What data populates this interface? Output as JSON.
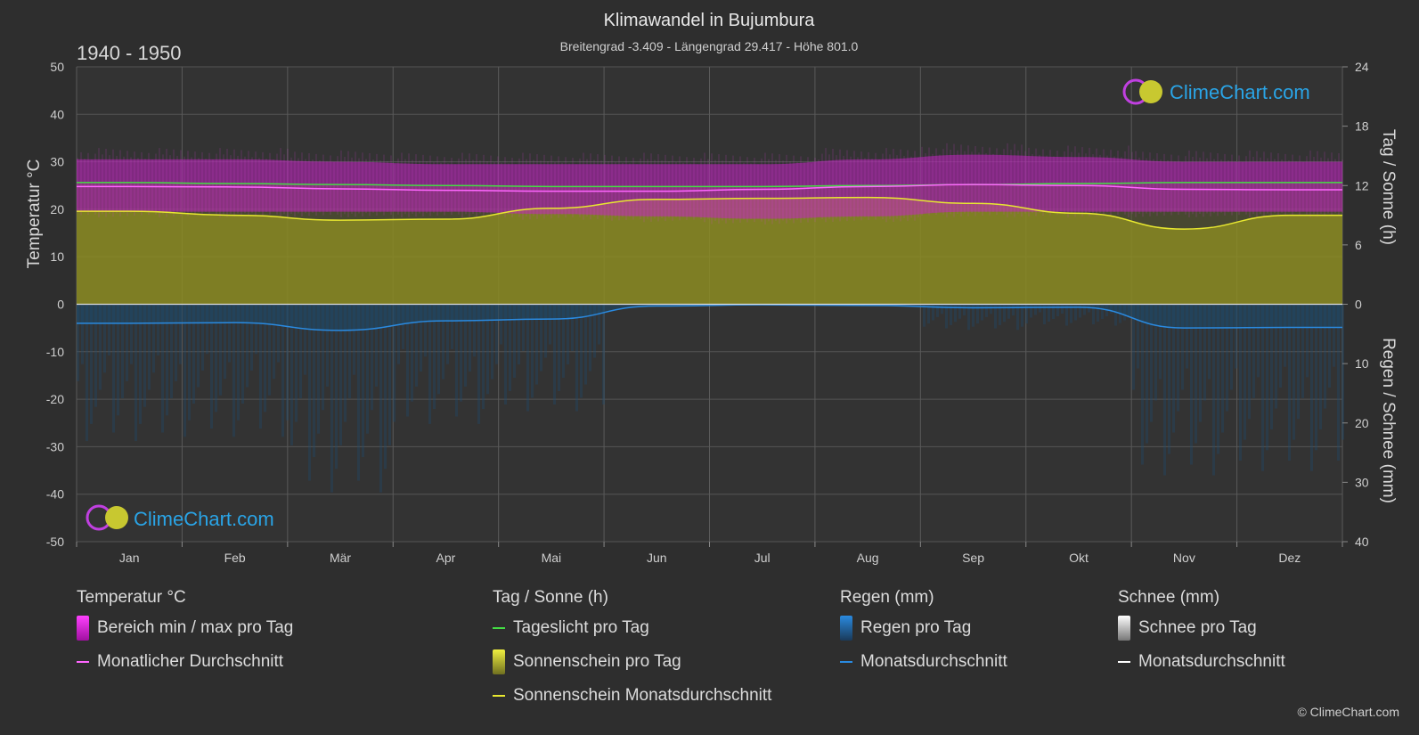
{
  "header": {
    "title": "Klimawandel in Bujumbura",
    "subtitle": "Breitengrad -3.409 - Längengrad 29.417 - Höhe 801.0",
    "range": "1940 - 1950"
  },
  "logo": {
    "text": "ClimeChart.com"
  },
  "copyright": "© ClimeChart.com",
  "colors": {
    "background": "#2e2e2e",
    "temp_range": "#d020d0",
    "temp_avg": "#ff66ff",
    "daylight": "#44dd44",
    "sunshine_fill": "#9a9a20",
    "sunshine_avg": "#e8e830",
    "rain_fill": "#1e5a8a",
    "rain_avg": "#2a8ae0",
    "snow_avg": "#ffffff"
  },
  "legend": {
    "temp": {
      "heading": "Temperatur °C",
      "items": [
        {
          "label": "Bereich min / max pro Tag",
          "swatch": "box",
          "color": "#e020e0"
        },
        {
          "label": "Monatlicher Durchschnitt",
          "swatch": "line",
          "color": "#ff66ff"
        }
      ]
    },
    "sun": {
      "heading": "Tag / Sonne (h)",
      "items": [
        {
          "label": "Tageslicht pro Tag",
          "swatch": "line",
          "color": "#44dd44"
        },
        {
          "label": "Sonnenschein pro Tag",
          "swatch": "box",
          "color": "#c8c830"
        },
        {
          "label": "Sonnenschein Monatsdurchschnitt",
          "swatch": "line",
          "color": "#e8e830"
        }
      ]
    },
    "rain": {
      "heading": "Regen (mm)",
      "items": [
        {
          "label": "Regen pro Tag",
          "swatch": "box",
          "color": "#2a8ae0"
        },
        {
          "label": "Monatsdurchschnitt",
          "swatch": "line",
          "color": "#2a8ae0"
        }
      ]
    },
    "snow": {
      "heading": "Schnee (mm)",
      "items": [
        {
          "label": "Schnee pro Tag",
          "swatch": "box",
          "color": "#dddddd"
        },
        {
          "label": "Monatsdurchschnitt",
          "swatch": "line",
          "color": "#ffffff"
        }
      ]
    }
  },
  "chart_data": {
    "type": "area",
    "categories": [
      "Jan",
      "Feb",
      "Mär",
      "Apr",
      "Mai",
      "Jun",
      "Jul",
      "Aug",
      "Sep",
      "Okt",
      "Nov",
      "Dez"
    ],
    "y_left": {
      "label": "Temperatur °C",
      "range": [
        -50,
        50
      ],
      "ticks": [
        50,
        40,
        30,
        20,
        10,
        0,
        -10,
        -20,
        -30,
        -40,
        -50
      ]
    },
    "y_right_top": {
      "label": "Tag / Sonne (h)",
      "range": [
        0,
        24
      ],
      "ticks": [
        24,
        18,
        12,
        6,
        0
      ]
    },
    "y_right_bottom": {
      "label": "Regen / Schnee (mm)",
      "range": [
        0,
        40
      ],
      "ticks": [
        10,
        20,
        30,
        40
      ]
    },
    "series": [
      {
        "name": "Bereich min / max pro Tag",
        "kind": "range",
        "min": [
          19.5,
          19.5,
          19.5,
          19.5,
          19,
          18.5,
          18,
          18.5,
          19.5,
          19.5,
          19.5,
          19.5
        ],
        "max": [
          30.5,
          30.5,
          30,
          29.5,
          29.5,
          29.5,
          29.5,
          30.5,
          31.5,
          31,
          30,
          30
        ]
      },
      {
        "name": "Monatlicher Durchschnitt",
        "kind": "temp_avg",
        "values": [
          24.8,
          24.7,
          24.3,
          24.0,
          23.8,
          23.8,
          24.2,
          24.8,
          25.2,
          25.0,
          24.2,
          24.1
        ]
      },
      {
        "name": "Tageslicht pro Tag",
        "kind": "daylight",
        "values": [
          12.3,
          12.2,
          12.1,
          12.0,
          11.9,
          11.9,
          11.9,
          12.0,
          12.1,
          12.2,
          12.3,
          12.3
        ]
      },
      {
        "name": "Sonnenschein Monatsdurchschnitt",
        "kind": "sun_avg",
        "values": [
          9.4,
          9.0,
          8.5,
          8.6,
          9.7,
          10.6,
          10.7,
          10.8,
          10.2,
          9.2,
          7.6,
          9.0
        ]
      },
      {
        "name": "Monatsdurchschnitt",
        "kind": "rain_avg",
        "values": [
          3.2,
          3.1,
          4.4,
          2.8,
          2.5,
          0.3,
          0.1,
          0.2,
          0.6,
          0.5,
          4.0,
          3.9
        ]
      }
    ]
  }
}
